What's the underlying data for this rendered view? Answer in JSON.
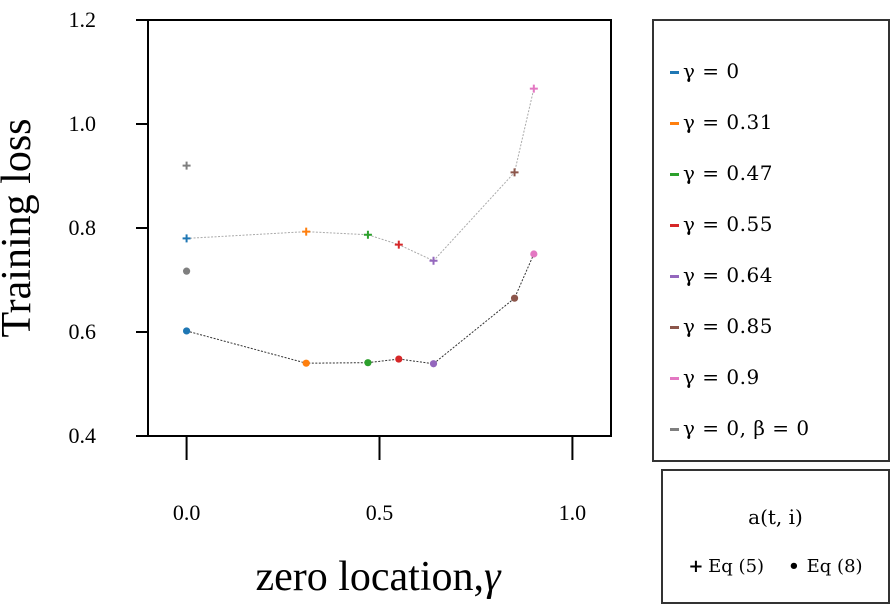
{
  "chart_data": {
    "type": "scatter",
    "xlabel": "zero location,",
    "xlabel_symbol": "γ",
    "ylabel": "Training loss",
    "xlim": [
      -0.1,
      1.1
    ],
    "ylim": [
      0.4,
      1.2
    ],
    "xticks": [
      "0.0",
      "0.5",
      "1.0"
    ],
    "xtick_values": [
      0.0,
      0.5,
      1.0
    ],
    "yticks": [
      "0.4",
      "0.6",
      "0.8",
      "1.0",
      "1.2"
    ],
    "ytick_values": [
      0.4,
      0.6,
      0.8,
      1.0,
      1.2
    ],
    "series": [
      {
        "name": "Eq (5)",
        "marker": "+",
        "line_color": "#aaaaaa",
        "connected": [
          {
            "x": 0.0,
            "y": 0.78,
            "color": "#1f77b4"
          },
          {
            "x": 0.31,
            "y": 0.793,
            "color": "#ff7f0e"
          },
          {
            "x": 0.47,
            "y": 0.787,
            "color": "#2ca02c"
          },
          {
            "x": 0.55,
            "y": 0.768,
            "color": "#d62728"
          },
          {
            "x": 0.64,
            "y": 0.737,
            "color": "#9467bd"
          },
          {
            "x": 0.85,
            "y": 0.907,
            "color": "#8c564b"
          },
          {
            "x": 0.9,
            "y": 1.068,
            "color": "#e377c2"
          }
        ],
        "extra": [
          {
            "x": 0.0,
            "y": 0.92,
            "color": "#7f7f7f"
          }
        ]
      },
      {
        "name": "Eq (8)",
        "marker": "•",
        "line_color": "#333333",
        "connected": [
          {
            "x": 0.0,
            "y": 0.602,
            "color": "#1f77b4"
          },
          {
            "x": 0.31,
            "y": 0.54,
            "color": "#ff7f0e"
          },
          {
            "x": 0.47,
            "y": 0.541,
            "color": "#2ca02c"
          },
          {
            "x": 0.55,
            "y": 0.548,
            "color": "#d62728"
          },
          {
            "x": 0.64,
            "y": 0.539,
            "color": "#9467bd"
          },
          {
            "x": 0.85,
            "y": 0.665,
            "color": "#8c564b"
          },
          {
            "x": 0.9,
            "y": 0.75,
            "color": "#e377c2"
          }
        ],
        "extra": [
          {
            "x": 0.0,
            "y": 0.717,
            "color": "#7f7f7f"
          }
        ]
      }
    ]
  },
  "legend_colors": [
    {
      "label": "γ = 0",
      "color": "#1f77b4"
    },
    {
      "label": "γ = 0.31",
      "color": "#ff7f0e"
    },
    {
      "label": "γ = 0.47",
      "color": "#2ca02c"
    },
    {
      "label": "γ = 0.55",
      "color": "#d62728"
    },
    {
      "label": "γ = 0.64",
      "color": "#9467bd"
    },
    {
      "label": "γ = 0.85",
      "color": "#8c564b"
    },
    {
      "label": "γ = 0.9",
      "color": "#e377c2"
    },
    {
      "label": "γ = 0, β = 0",
      "color": "#7f7f7f"
    }
  ],
  "legend_markers": {
    "title": "a(t, i)",
    "items": [
      {
        "symbol": "+",
        "label": "Eq (5)"
      },
      {
        "symbol": "•",
        "label": "Eq (8)"
      }
    ]
  }
}
